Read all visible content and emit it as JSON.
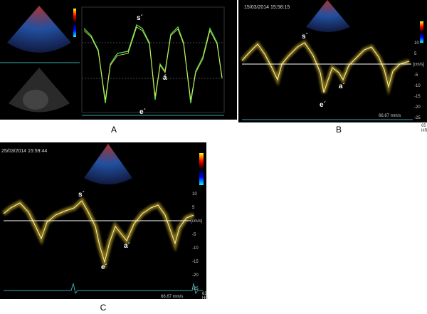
{
  "panels": [
    {
      "label": "A",
      "waves": [
        "s´",
        "á",
        "e´"
      ]
    },
    {
      "label": "B",
      "timestamp": "15/03/2014 15:58:15",
      "waves": [
        "s´",
        "a´",
        "e´"
      ],
      "ticks": [
        10,
        5,
        -5,
        -10,
        -15,
        -20,
        -25
      ],
      "unit": "[cm/s]",
      "heart_rate": 65,
      "hr_label": "HR",
      "sweep": "66.67 mm/s"
    },
    {
      "label": "C",
      "timestamp": "25/03/2014 15:59:44",
      "waves": [
        "s´",
        "a´",
        "e´"
      ],
      "ticks": [
        10,
        5,
        -5,
        -10,
        -15,
        -20,
        -25
      ],
      "unit": "[cm/s]",
      "heart_rate": 63,
      "hr_label": "HR",
      "sweep": "66.67 mm/s"
    }
  ]
}
